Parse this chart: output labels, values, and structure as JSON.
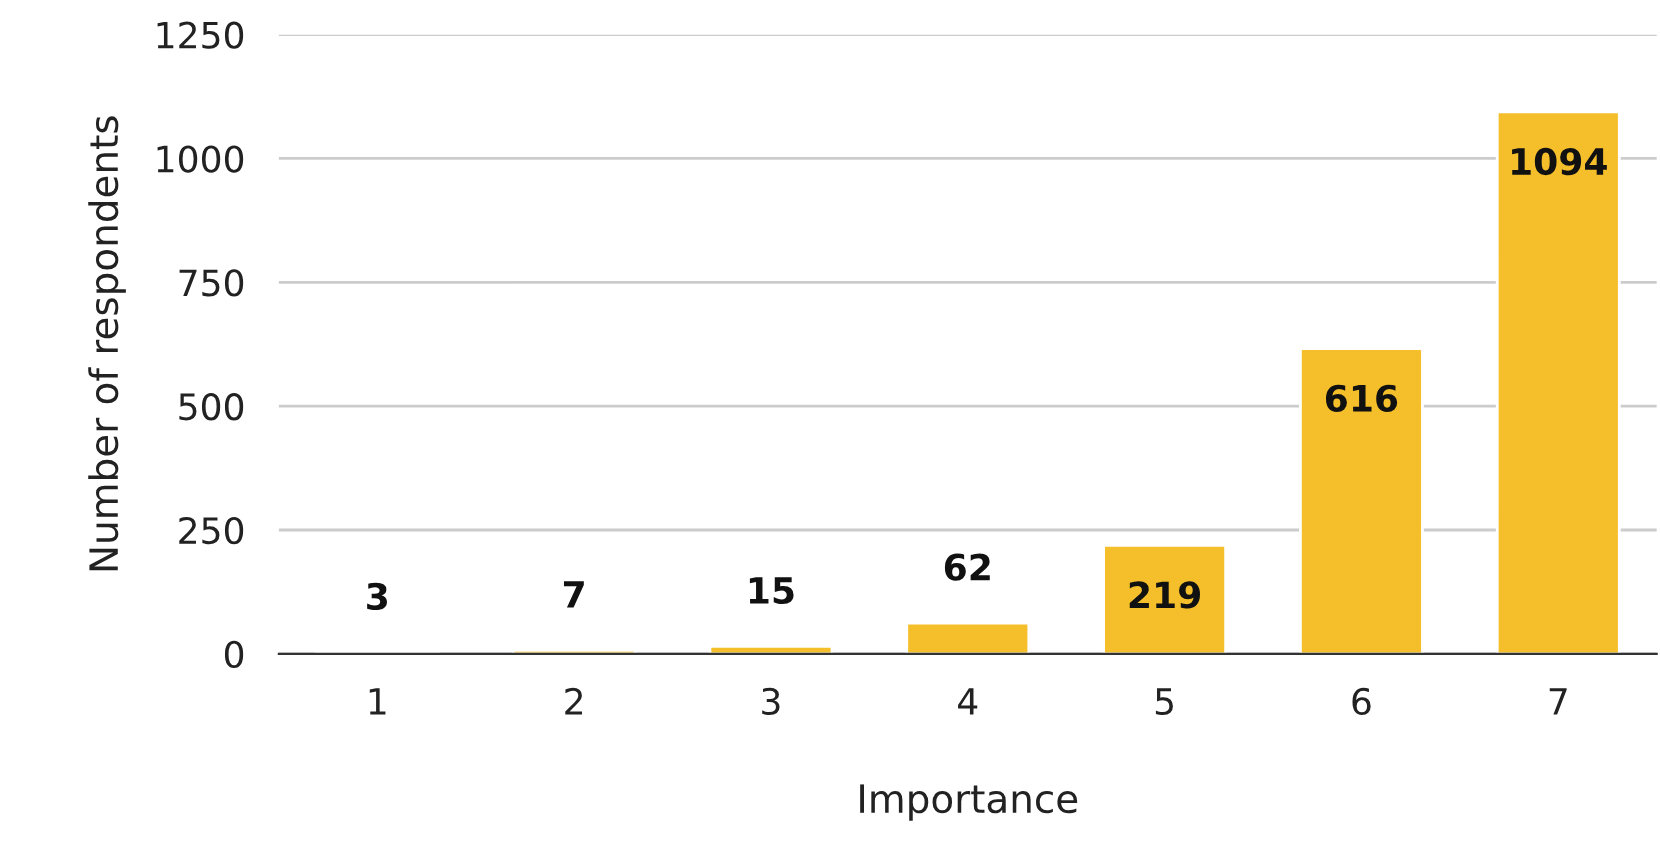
{
  "chart_data": {
    "type": "bar",
    "xlabel": "Importance",
    "ylabel": "Number of respondents",
    "categories": [
      "1",
      "2",
      "3",
      "4",
      "5",
      "6",
      "7"
    ],
    "values": [
      3,
      7,
      15,
      62,
      219,
      616,
      1094
    ],
    "color": "#f4bf2a",
    "ylim": [
      0,
      1250
    ],
    "yticks": [
      0,
      250,
      500,
      750,
      1000,
      1250
    ],
    "grid": "y",
    "data_labels": true
  }
}
